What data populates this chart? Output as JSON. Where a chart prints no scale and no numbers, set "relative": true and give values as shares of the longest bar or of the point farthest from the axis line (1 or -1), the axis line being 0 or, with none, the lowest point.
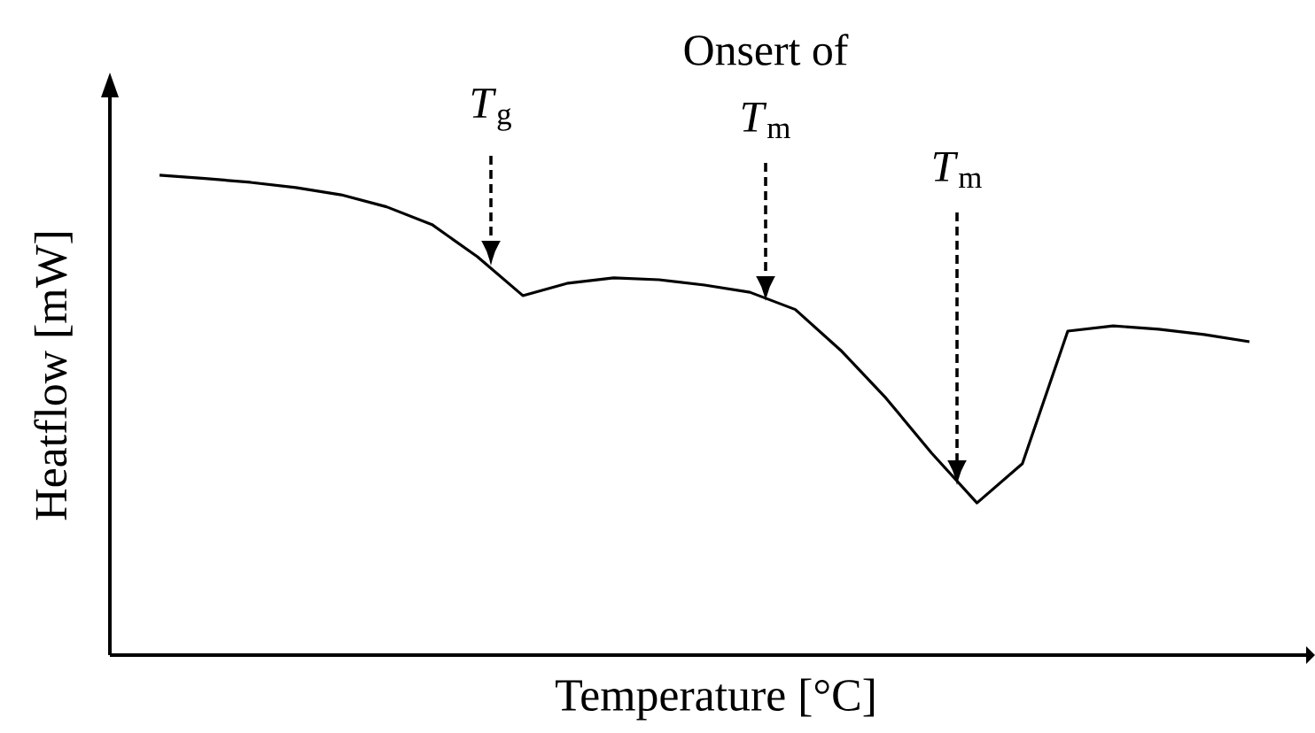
{
  "chart_data": {
    "type": "line",
    "relative": true,
    "xlabel": "Temperature [°C]",
    "ylabel": "Heatflow [mW]",
    "categories": [
      null,
      null,
      null,
      null,
      null,
      null,
      null,
      null,
      null,
      null,
      null,
      null,
      null,
      null,
      null,
      null,
      null,
      null,
      null,
      null,
      null,
      null,
      null,
      null,
      null
    ],
    "values": [
      1.0,
      0.993,
      0.985,
      0.974,
      0.959,
      0.934,
      0.897,
      0.83,
      0.749,
      0.775,
      0.786,
      0.782,
      0.771,
      0.756,
      0.72,
      0.635,
      0.535,
      0.421,
      0.317,
      0.399,
      0.675,
      0.686,
      0.679,
      0.668,
      0.653
    ],
    "color": "#000000",
    "annotations": [
      "*T*$_{g}$",
      "Onsert of",
      "*T*$_{m}$",
      "*T*$_{m}$"
    ]
  }
}
